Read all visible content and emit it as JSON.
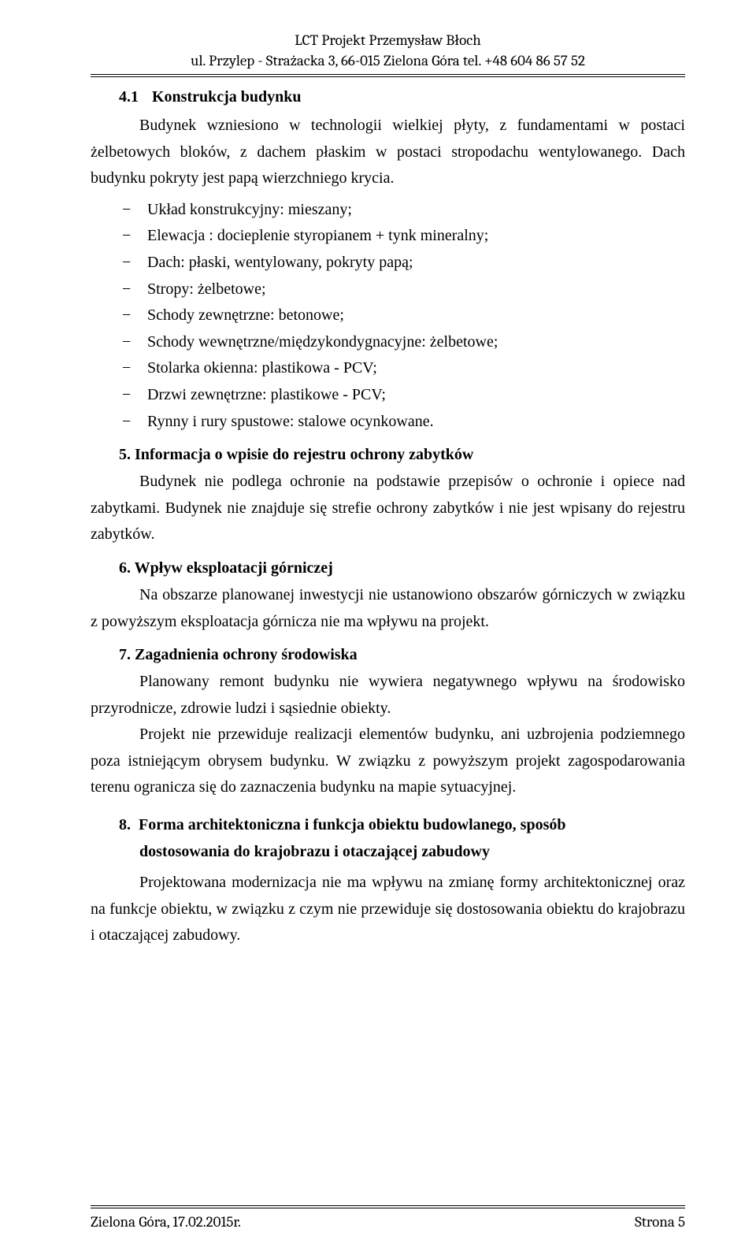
{
  "header": {
    "line1": "LCT Projekt Przemysław Błoch",
    "line2": "ul. Przylep - Strażacka 3, 66-015 Zielona Góra tel. +48 604 86 57 52"
  },
  "section41": {
    "num": "4.1",
    "title": "Konstrukcja budynku",
    "intro": "Budynek wzniesiono w technologii wielkiej płyty, z fundamentami w postaci żelbetowych bloków, z dachem płaskim w postaci stropodachu wentylowanego. Dach budynku pokryty jest papą wierzchniego krycia.",
    "items": [
      "Układ konstrukcyjny: mieszany;",
      "Elewacja : docieplenie styropianem + tynk mineralny;",
      "Dach: płaski, wentylowany, pokryty papą;",
      "Stropy: żelbetowe;",
      "Schody zewnętrzne: betonowe;",
      "Schody wewnętrzne/międzykondygnacyjne: żelbetowe;",
      "Stolarka okienna: plastikowa - PCV;",
      "Drzwi zewnętrzne: plastikowe - PCV;",
      "Rynny i rury spustowe: stalowe ocynkowane."
    ]
  },
  "section5": {
    "head": "5.  Informacja o wpisie do rejestru  ochrony zabytków",
    "body": "Budynek   nie  podlega  ochronie  na  podstawie  przepisów  o  ochronie  i  opiece  nad zabytkami. Budynek nie znajduje się strefie  ochrony zabytków i  nie jest wpisany do rejestru zabytków."
  },
  "section6": {
    "head": "6.  Wpływ eksploatacji górniczej",
    "body": "Na obszarze planowanej inwestycji nie ustanowiono obszarów górniczych w związku z powyższym eksploatacja górnicza nie ma wpływu na projekt."
  },
  "section7": {
    "head": "7.  Zagadnienia ochrony środowiska",
    "p1": "Planowany  remont  budynku  nie  wywiera  negatywnego  wpływu  na  środowisko przyrodnicze, zdrowie ludzi i sąsiednie obiekty.",
    "p2": "Projekt  nie  przewiduje  realizacji  elementów  budynku,  ani  uzbrojenia  podziemnego poza  istniejącym  obrysem  budynku.  W  związku  z powyższym  projekt  zagospodarowania terenu ogranicza się do zaznaczenia budynku na mapie sytuacyjnej."
  },
  "section8": {
    "num": "8.",
    "line1_rest": "Forma    architektoniczna    i    funkcja    obiektu    budowlanego,    sposób",
    "line2": "dostosowania do krajobrazu i otaczającej zabudowy",
    "body": "Projektowana modernizacja nie ma wpływu na zmianę formy architektonicznej oraz na funkcje obiektu, w związku z czym nie przewiduje się dostosowania obiektu do krajobrazu i otaczającej zabudowy."
  },
  "footer": {
    "left": "Zielona Góra, 17.02.2015r.",
    "right": "Strona 5"
  }
}
